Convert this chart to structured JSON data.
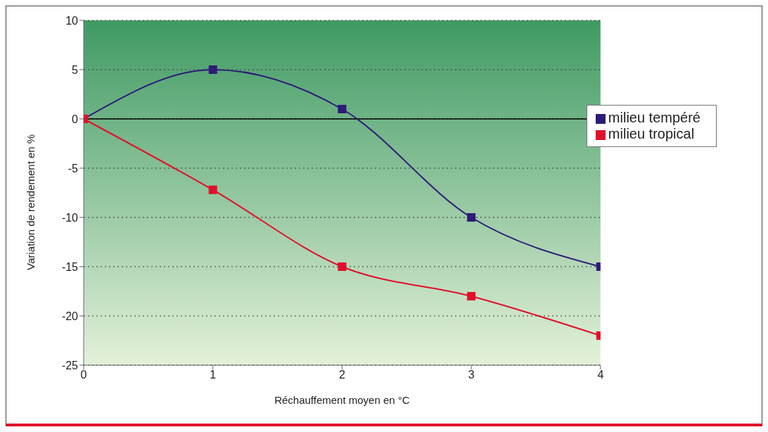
{
  "chart_data": {
    "type": "line",
    "xlabel": "Réchauffement moyen en °C",
    "ylabel": "Variation de rendement en %",
    "x": [
      0,
      1,
      2,
      3,
      4
    ],
    "series": [
      {
        "name": "milieu tempéré",
        "color": "#2e1a78",
        "values": [
          0,
          5,
          1,
          -10,
          -15
        ]
      },
      {
        "name": "milieu tropical",
        "color": "#e0102a",
        "values": [
          0,
          -7.2,
          -15,
          -18,
          -22
        ]
      }
    ],
    "xlim": [
      0,
      4
    ],
    "xticks": [
      0,
      1,
      2,
      3,
      4
    ],
    "ylim": [
      -25,
      10
    ],
    "yticks": [
      -25,
      -20,
      -15,
      -10,
      -5,
      0,
      5,
      10
    ],
    "grid": "y",
    "legend": "right",
    "marker": "square",
    "line_style": "solid",
    "ref_lines": [
      {
        "axis": "y",
        "value": 0,
        "color": "#000000",
        "line_style": "solid"
      }
    ]
  }
}
